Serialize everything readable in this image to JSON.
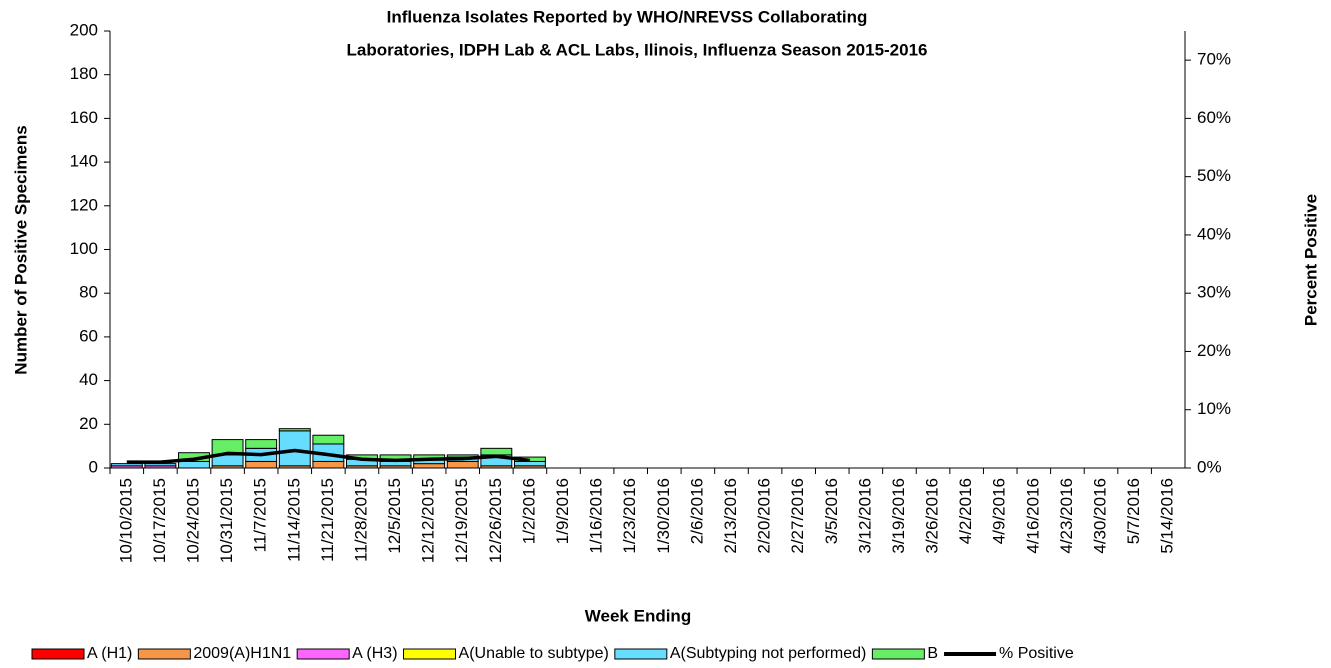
{
  "chart_data": {
    "type": "bar",
    "stacked": true,
    "title": [
      "Influenza  Isolates Reported by WHO/NREVSS Collaborating",
      "Laboratories, IDPH Lab & ACL Labs, Ilinois, Influenza Season 2015-2016"
    ],
    "x_label": "Week Ending",
    "y_label": "Number of  Positive Specimens",
    "y2_label": "Percent Positive",
    "categories": [
      "10/10/2015",
      "10/17/2015",
      "10/24/2015",
      "10/31/2015",
      "11/7/2015",
      "11/14/2015",
      "11/21/2015",
      "11/28/2015",
      "12/5/2015",
      "12/12/2015",
      "12/19/2015",
      "12/26/2015",
      "1/2/2016",
      "1/9/2016",
      "1/16/2016",
      "1/23/2016",
      "1/30/2016",
      "2/6/2016",
      "2/13/2016",
      "2/20/2016",
      "2/27/2016",
      "3/5/2016",
      "3/12/2016",
      "3/19/2016",
      "3/26/2016",
      "4/2/2016",
      "4/9/2016",
      "4/16/2016",
      "4/23/2016",
      "4/30/2016",
      "5/7/2016",
      "5/14/2016"
    ],
    "ylim": [
      0,
      200
    ],
    "yticks": [
      0,
      20,
      40,
      60,
      80,
      100,
      120,
      140,
      160,
      180,
      200
    ],
    "y2lim": [
      0,
      75
    ],
    "y2ticks": [
      {
        "value": 0,
        "label": "0%"
      },
      {
        "value": 10,
        "label": "10%"
      },
      {
        "value": 20,
        "label": "20%"
      },
      {
        "value": 30,
        "label": "30%"
      },
      {
        "value": 40,
        "label": "40%"
      },
      {
        "value": 50,
        "label": "50%"
      },
      {
        "value": 60,
        "label": "60%"
      },
      {
        "value": 70,
        "label": "70%"
      }
    ],
    "legend": "bottom",
    "series": [
      {
        "name": "A (H1)",
        "color": "#ff0000",
        "values": [
          0,
          0,
          0,
          0,
          0,
          0,
          0,
          0,
          0,
          0,
          0,
          0,
          0,
          null,
          null,
          null,
          null,
          null,
          null,
          null,
          null,
          null,
          null,
          null,
          null,
          null,
          null,
          null,
          null,
          null,
          null,
          null
        ]
      },
      {
        "name": "2009(A)H1N1",
        "color": "#f79646",
        "values": [
          0,
          0,
          0,
          1,
          3,
          1,
          3,
          1,
          1,
          2,
          3,
          1,
          1,
          null,
          null,
          null,
          null,
          null,
          null,
          null,
          null,
          null,
          null,
          null,
          null,
          null,
          null,
          null,
          null,
          null,
          null,
          null
        ]
      },
      {
        "name": "A (H3)",
        "color": "#ff66ff",
        "values": [
          1,
          1,
          0,
          0,
          0,
          0,
          0,
          0,
          0,
          0,
          0,
          0,
          0,
          null,
          null,
          null,
          null,
          null,
          null,
          null,
          null,
          null,
          null,
          null,
          null,
          null,
          null,
          null,
          null,
          null,
          null,
          null
        ]
      },
      {
        "name": "A(Unable to subtype)",
        "color": "#ffff00",
        "values": [
          0,
          0,
          0,
          0,
          0,
          0,
          0,
          0,
          0,
          0,
          0,
          0,
          0,
          null,
          null,
          null,
          null,
          null,
          null,
          null,
          null,
          null,
          null,
          null,
          null,
          null,
          null,
          null,
          null,
          null,
          null,
          null
        ]
      },
      {
        "name": "A(Subtyping not performed)",
        "color": "#66ddff",
        "values": [
          1,
          1,
          3,
          5,
          6,
          16,
          8,
          3,
          2,
          2,
          2,
          5,
          2,
          null,
          null,
          null,
          null,
          null,
          null,
          null,
          null,
          null,
          null,
          null,
          null,
          null,
          null,
          null,
          null,
          null,
          null,
          null
        ]
      },
      {
        "name": "B",
        "color": "#66ee66",
        "values": [
          0,
          0,
          4,
          7,
          4,
          1,
          4,
          2,
          3,
          2,
          1,
          3,
          2,
          null,
          null,
          null,
          null,
          null,
          null,
          null,
          null,
          null,
          null,
          null,
          null,
          null,
          null,
          null,
          null,
          null,
          null,
          null
        ]
      },
      {
        "name": "% Positive",
        "color": "#000000",
        "type": "line",
        "axis": "y2",
        "values": [
          1,
          1,
          1.5,
          2.5,
          2.3,
          3,
          2.3,
          1.5,
          1.3,
          1.5,
          1.6,
          2,
          1.3,
          null,
          null,
          null,
          null,
          null,
          null,
          null,
          null,
          null,
          null,
          null,
          null,
          null,
          null,
          null,
          null,
          null,
          null,
          null
        ]
      }
    ]
  }
}
